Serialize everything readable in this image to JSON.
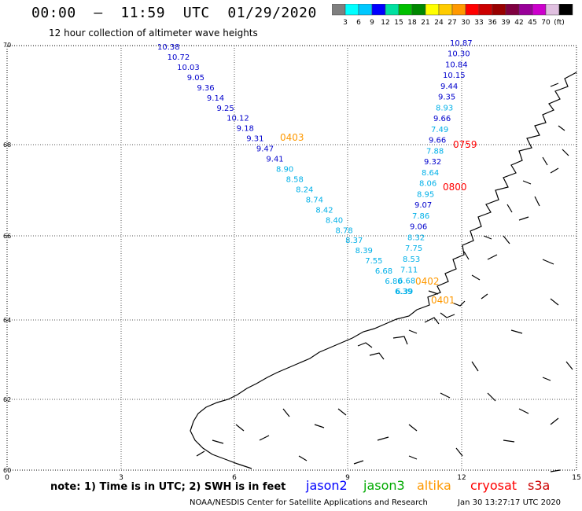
{
  "header": {
    "title": "00:00  –  11:59  UTC  01/29/2020",
    "subtitle": "12 hour collection of altimeter wave heights"
  },
  "colorbar": {
    "colors": [
      "#7f7f7f",
      "#00ffff",
      "#00c8ff",
      "#0000ff",
      "#00e0a0",
      "#00c000",
      "#008800",
      "#ffff00",
      "#ffcc00",
      "#ff9900",
      "#ff0000",
      "#cc0000",
      "#990000",
      "#7f0040",
      "#990099",
      "#cc00cc",
      "#e0c0e0",
      "#000000"
    ],
    "labels": [
      "3",
      "6",
      "9",
      "12",
      "15",
      "18",
      "21",
      "24",
      "27",
      "30",
      "33",
      "36",
      "39",
      "42",
      "45",
      "70",
      "(ft)"
    ]
  },
  "map": {
    "x_ticks": [
      "0",
      "3",
      "6",
      "9",
      "12",
      "15"
    ],
    "y_ticks": [
      "70",
      "68",
      "66",
      "64",
      "62",
      "60"
    ],
    "track_west": [
      "10.38",
      "10.72",
      "10.03",
      "9.05",
      "9.36",
      "9.14",
      "9.25",
      "10.12",
      "9.18",
      "9.31",
      "9.47",
      "9.41",
      "8.90",
      "8.58",
      "8.24",
      "8.74",
      "8.42",
      "8.40",
      "8.78",
      "8.37",
      "8.39",
      "7.55",
      "6.68",
      "6.80",
      "6.39"
    ],
    "track_east": [
      "10.87",
      "10.30",
      "10.84",
      "10.15",
      "9.44",
      "9.35",
      "8.93",
      "9.66",
      "7.49",
      "9.66",
      "7.88",
      "9.32",
      "8.64",
      "8.06",
      "8.95",
      "9.07",
      "7.86",
      "9.06",
      "8.32",
      "7.75",
      "8.53",
      "7.11",
      "6.68",
      "6.39"
    ],
    "pass_labels": [
      {
        "text": "0403",
        "color": "#ff9900"
      },
      {
        "text": "0759",
        "color": "#ff0000"
      },
      {
        "text": "0800",
        "color": "#ff0000"
      },
      {
        "text": "0402",
        "color": "#ff9900"
      },
      {
        "text": "0401",
        "color": "#ff9900"
      }
    ]
  },
  "footer": {
    "note": "note:  1) Time is in UTC;  2) SWH is in feet",
    "legend": [
      {
        "name": "jason2",
        "color": "#0000ff"
      },
      {
        "name": "jason3",
        "color": "#00aa00"
      },
      {
        "name": "altika",
        "color": "#ff9900"
      },
      {
        "name": "cryosat",
        "color": "#ff0000"
      },
      {
        "name": "s3a",
        "color": "#cc0000"
      }
    ],
    "credit": "NOAA/NESDIS Center for Satellite Applications and Research",
    "timestamp": "Jan 30 13:27:17 UTC 2020"
  }
}
